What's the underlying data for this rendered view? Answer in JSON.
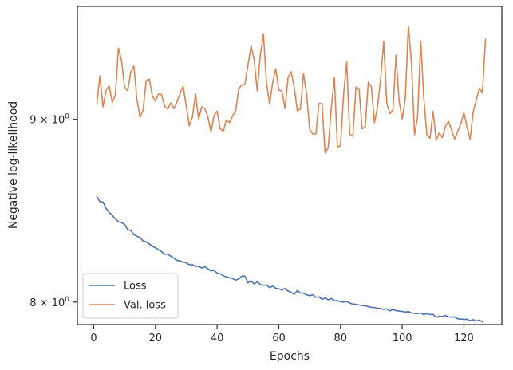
{
  "chart_data": {
    "type": "line",
    "xlabel": "Epochs",
    "ylabel": "Negative log-likelihood",
    "yscale": "log",
    "xlim": [
      -5.3,
      132.3
    ],
    "ylim": [
      7.885,
      9.68
    ],
    "x_ticks": [
      0,
      20,
      40,
      60,
      80,
      100,
      120
    ],
    "y_ticks": [
      {
        "value": 8,
        "base": "8",
        "times": "×",
        "pow": "10",
        "exp": "0"
      },
      {
        "value": 9,
        "base": "9",
        "times": "×",
        "pow": "10",
        "exp": "0"
      }
    ],
    "grid": false,
    "legend_position": "lower-left",
    "series": [
      {
        "name": "Loss",
        "color": "#4c72b0",
        "x_start": 1,
        "x_step": 1,
        "values": [
          8.564,
          8.535,
          8.533,
          8.497,
          8.476,
          8.461,
          8.441,
          8.426,
          8.421,
          8.41,
          8.383,
          8.378,
          8.356,
          8.347,
          8.34,
          8.321,
          8.317,
          8.306,
          8.293,
          8.285,
          8.275,
          8.264,
          8.25,
          8.251,
          8.24,
          8.23,
          8.218,
          8.215,
          8.209,
          8.205,
          8.195,
          8.195,
          8.186,
          8.187,
          8.178,
          8.184,
          8.174,
          8.162,
          8.165,
          8.151,
          8.147,
          8.138,
          8.13,
          8.127,
          8.122,
          8.114,
          8.12,
          8.135,
          8.135,
          8.1,
          8.11,
          8.094,
          8.105,
          8.092,
          8.087,
          8.089,
          8.075,
          8.082,
          8.072,
          8.069,
          8.062,
          8.072,
          8.057,
          8.051,
          8.04,
          8.06,
          8.047,
          8.046,
          8.038,
          8.033,
          8.038,
          8.025,
          8.027,
          8.015,
          8.021,
          8.012,
          8.019,
          8.007,
          8.008,
          8.002,
          8.0,
          8.003,
          7.995,
          7.99,
          7.989,
          7.985,
          7.982,
          7.981,
          7.977,
          7.973,
          7.972,
          7.968,
          7.967,
          7.962,
          7.965,
          7.955,
          7.962,
          7.956,
          7.954,
          7.952,
          7.949,
          7.951,
          7.945,
          7.942,
          7.941,
          7.944,
          7.936,
          7.941,
          7.936,
          7.937,
          7.921,
          7.928,
          7.926,
          7.931,
          7.924,
          7.923,
          7.924,
          7.914,
          7.913,
          7.911,
          7.912,
          7.905,
          7.91,
          7.902,
          7.908,
          7.899
        ]
      },
      {
        "name": "Val. loss",
        "color": "#dd8452",
        "x_start": 1,
        "x_step": 1,
        "values": [
          9.088,
          9.255,
          9.072,
          9.17,
          9.197,
          9.099,
          9.142,
          9.423,
          9.348,
          9.19,
          9.167,
          9.279,
          9.315,
          9.115,
          9.012,
          9.055,
          9.227,
          9.237,
          9.137,
          9.107,
          9.15,
          9.144,
          9.075,
          9.06,
          9.097,
          9.062,
          9.102,
          9.154,
          9.194,
          9.075,
          8.962,
          9.015,
          9.149,
          9.001,
          9.073,
          9.063,
          9.014,
          8.928,
          9.022,
          9.048,
          8.945,
          8.932,
          8.997,
          8.982,
          9.019,
          9.047,
          9.179,
          9.202,
          9.206,
          9.32,
          9.436,
          9.353,
          9.167,
          9.382,
          9.508,
          9.216,
          9.088,
          9.217,
          9.299,
          9.171,
          9.166,
          9.063,
          9.247,
          9.281,
          9.188,
          9.05,
          9.061,
          9.269,
          9.149,
          8.943,
          8.916,
          8.916,
          9.093,
          9.09,
          8.808,
          8.837,
          9.066,
          9.245,
          8.839,
          8.851,
          9.147,
          9.339,
          8.914,
          8.902,
          9.19,
          9.18,
          8.946,
          8.956,
          9.218,
          9.191,
          8.98,
          9.074,
          9.238,
          9.463,
          9.094,
          9.033,
          9.055,
          9.382,
          9.106,
          9.002,
          9.12,
          9.56,
          9.332,
          8.911,
          9.017,
          9.467,
          9.123,
          8.911,
          8.891,
          9.047,
          8.88,
          8.921,
          8.895,
          8.96,
          8.989,
          8.939,
          8.887,
          8.931,
          8.975,
          9.039,
          8.957,
          8.884,
          9.043,
          9.112,
          9.183,
          9.155,
          9.477
        ]
      }
    ]
  }
}
